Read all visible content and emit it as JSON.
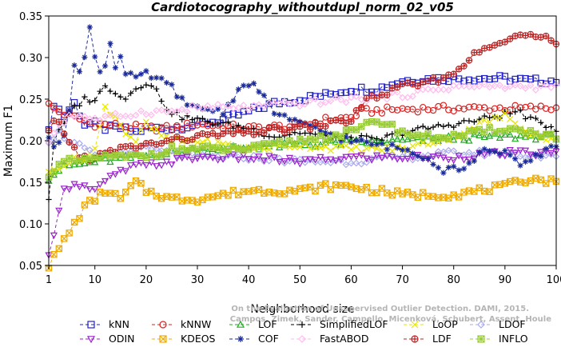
{
  "chart_data": {
    "type": "line",
    "title": "Cardiotocography_withoutdupl_norm_02_v05",
    "xlabel": "Neighborhood size",
    "ylabel": "Maximum F1",
    "xlim": [
      1,
      100
    ],
    "ylim": [
      0.05,
      0.35
    ],
    "xticks": [
      1,
      10,
      20,
      30,
      40,
      50,
      60,
      70,
      80,
      90,
      100
    ],
    "yticks": [
      0.05,
      0.1,
      0.15,
      0.2,
      0.25,
      0.3,
      0.35
    ],
    "legend_position": "bottom",
    "watermark": [
      "Campos, Zimek, Sander, Campello, Micenková, Schubert, Assent, Houle",
      "On the Evaluation of Unsupervised Outlier Detection. DAMI, 2015."
    ],
    "series": [
      {
        "name": "kNN",
        "color": "#2222cc",
        "marker": "square",
        "keypoints": [
          [
            1,
            0.21
          ],
          [
            2,
            0.245
          ],
          [
            4,
            0.23
          ],
          [
            6,
            0.245
          ],
          [
            8,
            0.22
          ],
          [
            10,
            0.22
          ],
          [
            12,
            0.215
          ],
          [
            15,
            0.215
          ],
          [
            18,
            0.21
          ],
          [
            20,
            0.215
          ],
          [
            25,
            0.215
          ],
          [
            30,
            0.22
          ],
          [
            35,
            0.225
          ],
          [
            40,
            0.235
          ],
          [
            45,
            0.245
          ],
          [
            50,
            0.25
          ],
          [
            55,
            0.255
          ],
          [
            60,
            0.262
          ],
          [
            65,
            0.262
          ],
          [
            68,
            0.268
          ],
          [
            70,
            0.272
          ],
          [
            75,
            0.274
          ],
          [
            80,
            0.275
          ],
          [
            90,
            0.275
          ],
          [
            95,
            0.272
          ],
          [
            100,
            0.272
          ]
        ]
      },
      {
        "name": "kNNW",
        "color": "#dd2222",
        "marker": "circle",
        "keypoints": [
          [
            1,
            0.243
          ],
          [
            3,
            0.235
          ],
          [
            6,
            0.228
          ],
          [
            10,
            0.22
          ],
          [
            15,
            0.218
          ],
          [
            20,
            0.215
          ],
          [
            25,
            0.215
          ],
          [
            30,
            0.22
          ],
          [
            40,
            0.215
          ],
          [
            50,
            0.218
          ],
          [
            55,
            0.225
          ],
          [
            60,
            0.228
          ],
          [
            62,
            0.235
          ],
          [
            65,
            0.236
          ],
          [
            70,
            0.238
          ],
          [
            80,
            0.239
          ],
          [
            90,
            0.239
          ],
          [
            100,
            0.239
          ]
        ]
      },
      {
        "name": "LOF",
        "color": "#22aa22",
        "marker": "triangle-up",
        "keypoints": [
          [
            1,
            0.155
          ],
          [
            3,
            0.165
          ],
          [
            5,
            0.17
          ],
          [
            8,
            0.172
          ],
          [
            10,
            0.175
          ],
          [
            15,
            0.178
          ],
          [
            20,
            0.182
          ],
          [
            25,
            0.185
          ],
          [
            30,
            0.19
          ],
          [
            40,
            0.192
          ],
          [
            50,
            0.195
          ],
          [
            60,
            0.198
          ],
          [
            70,
            0.2
          ],
          [
            80,
            0.203
          ],
          [
            90,
            0.205
          ],
          [
            100,
            0.205
          ]
        ]
      },
      {
        "name": "SimplifiedLOF",
        "color": "#000000",
        "marker": "plus",
        "keypoints": [
          [
            1,
            0.13
          ],
          [
            2,
            0.2
          ],
          [
            4,
            0.22
          ],
          [
            6,
            0.24
          ],
          [
            8,
            0.25
          ],
          [
            10,
            0.25
          ],
          [
            12,
            0.265
          ],
          [
            14,
            0.26
          ],
          [
            16,
            0.25
          ],
          [
            18,
            0.265
          ],
          [
            20,
            0.27
          ],
          [
            22,
            0.26
          ],
          [
            24,
            0.24
          ],
          [
            26,
            0.23
          ],
          [
            30,
            0.225
          ],
          [
            35,
            0.22
          ],
          [
            40,
            0.215
          ],
          [
            45,
            0.205
          ],
          [
            50,
            0.21
          ],
          [
            55,
            0.205
          ],
          [
            60,
            0.205
          ],
          [
            65,
            0.2
          ],
          [
            70,
            0.21
          ],
          [
            75,
            0.215
          ],
          [
            80,
            0.22
          ],
          [
            85,
            0.225
          ],
          [
            90,
            0.232
          ],
          [
            93,
            0.235
          ],
          [
            95,
            0.225
          ],
          [
            100,
            0.215
          ]
        ]
      },
      {
        "name": "LoOP",
        "color": "#e6e600",
        "marker": "x",
        "keypoints": [
          [
            1,
            0.16
          ],
          [
            3,
            0.17
          ],
          [
            5,
            0.175
          ],
          [
            8,
            0.18
          ],
          [
            10,
            0.19
          ],
          [
            12,
            0.24
          ],
          [
            14,
            0.23
          ],
          [
            16,
            0.21
          ],
          [
            18,
            0.2
          ],
          [
            20,
            0.22
          ],
          [
            22,
            0.21
          ],
          [
            25,
            0.2
          ],
          [
            30,
            0.2
          ],
          [
            40,
            0.19
          ],
          [
            50,
            0.195
          ],
          [
            60,
            0.19
          ],
          [
            70,
            0.19
          ],
          [
            80,
            0.205
          ],
          [
            85,
            0.22
          ],
          [
            90,
            0.23
          ],
          [
            95,
            0.21
          ],
          [
            100,
            0.2
          ]
        ]
      },
      {
        "name": "LDOF",
        "color": "#aaaaee",
        "marker": "diamond",
        "keypoints": [
          [
            1,
            0.2
          ],
          [
            3,
            0.21
          ],
          [
            5,
            0.2
          ],
          [
            8,
            0.19
          ],
          [
            10,
            0.18
          ],
          [
            15,
            0.185
          ],
          [
            20,
            0.19
          ],
          [
            25,
            0.185
          ],
          [
            30,
            0.18
          ],
          [
            40,
            0.18
          ],
          [
            50,
            0.175
          ],
          [
            60,
            0.175
          ],
          [
            70,
            0.18
          ],
          [
            80,
            0.185
          ],
          [
            90,
            0.185
          ],
          [
            100,
            0.18
          ]
        ]
      },
      {
        "name": "ODIN",
        "color": "#9922cc",
        "marker": "triangle-down",
        "keypoints": [
          [
            1,
            0.06
          ],
          [
            2,
            0.09
          ],
          [
            3,
            0.12
          ],
          [
            4,
            0.14
          ],
          [
            6,
            0.15
          ],
          [
            8,
            0.145
          ],
          [
            10,
            0.14
          ],
          [
            12,
            0.15
          ],
          [
            14,
            0.16
          ],
          [
            16,
            0.165
          ],
          [
            18,
            0.17
          ],
          [
            20,
            0.17
          ],
          [
            25,
            0.175
          ],
          [
            30,
            0.18
          ],
          [
            40,
            0.18
          ],
          [
            50,
            0.175
          ],
          [
            60,
            0.18
          ],
          [
            70,
            0.18
          ],
          [
            80,
            0.18
          ],
          [
            90,
            0.185
          ],
          [
            100,
            0.185
          ]
        ]
      },
      {
        "name": "KDEOS",
        "color": "#eeaa00",
        "marker": "square-x",
        "keypoints": [
          [
            1,
            0.05
          ],
          [
            2,
            0.06
          ],
          [
            4,
            0.08
          ],
          [
            6,
            0.1
          ],
          [
            8,
            0.12
          ],
          [
            10,
            0.13
          ],
          [
            12,
            0.14
          ],
          [
            15,
            0.13
          ],
          [
            18,
            0.15
          ],
          [
            20,
            0.14
          ],
          [
            25,
            0.13
          ],
          [
            30,
            0.13
          ],
          [
            35,
            0.135
          ],
          [
            40,
            0.14
          ],
          [
            45,
            0.14
          ],
          [
            50,
            0.14
          ],
          [
            55,
            0.145
          ],
          [
            60,
            0.145
          ],
          [
            65,
            0.14
          ],
          [
            70,
            0.135
          ],
          [
            75,
            0.135
          ],
          [
            80,
            0.135
          ],
          [
            85,
            0.14
          ],
          [
            90,
            0.145
          ],
          [
            95,
            0.155
          ],
          [
            100,
            0.15
          ]
        ]
      },
      {
        "name": "COF",
        "color": "#1a2a99",
        "marker": "star",
        "keypoints": [
          [
            1,
            0.2
          ],
          [
            2,
            0.195
          ],
          [
            3,
            0.2
          ],
          [
            4,
            0.21
          ],
          [
            5,
            0.24
          ],
          [
            6,
            0.29
          ],
          [
            7,
            0.28
          ],
          [
            8,
            0.3
          ],
          [
            9,
            0.34
          ],
          [
            10,
            0.3
          ],
          [
            11,
            0.285
          ],
          [
            12,
            0.29
          ],
          [
            13,
            0.32
          ],
          [
            14,
            0.29
          ],
          [
            15,
            0.3
          ],
          [
            16,
            0.28
          ],
          [
            18,
            0.275
          ],
          [
            20,
            0.28
          ],
          [
            22,
            0.275
          ],
          [
            25,
            0.265
          ],
          [
            28,
            0.24
          ],
          [
            30,
            0.24
          ],
          [
            35,
            0.235
          ],
          [
            38,
            0.26
          ],
          [
            40,
            0.27
          ],
          [
            42,
            0.26
          ],
          [
            45,
            0.235
          ],
          [
            50,
            0.22
          ],
          [
            55,
            0.21
          ],
          [
            60,
            0.2
          ],
          [
            65,
            0.195
          ],
          [
            70,
            0.19
          ],
          [
            75,
            0.18
          ],
          [
            78,
            0.165
          ],
          [
            80,
            0.17
          ],
          [
            82,
            0.165
          ],
          [
            85,
            0.185
          ],
          [
            88,
            0.19
          ],
          [
            90,
            0.185
          ],
          [
            93,
            0.17
          ],
          [
            96,
            0.18
          ],
          [
            98,
            0.19
          ],
          [
            100,
            0.195
          ]
        ]
      },
      {
        "name": "FastABOD",
        "color": "#ffbbee",
        "marker": "diamond",
        "keypoints": [
          [
            1,
            0.2
          ],
          [
            3,
            0.22
          ],
          [
            5,
            0.23
          ],
          [
            8,
            0.23
          ],
          [
            10,
            0.225
          ],
          [
            15,
            0.23
          ],
          [
            20,
            0.235
          ],
          [
            25,
            0.235
          ],
          [
            30,
            0.24
          ],
          [
            40,
            0.24
          ],
          [
            50,
            0.245
          ],
          [
            60,
            0.25
          ],
          [
            70,
            0.255
          ],
          [
            80,
            0.265
          ],
          [
            90,
            0.265
          ],
          [
            100,
            0.265
          ]
        ]
      },
      {
        "name": "LDF",
        "color": "#bb2222",
        "marker": "circle-plus",
        "keypoints": [
          [
            1,
            0.21
          ],
          [
            2,
            0.22
          ],
          [
            3,
            0.22
          ],
          [
            5,
            0.2
          ],
          [
            7,
            0.18
          ],
          [
            10,
            0.18
          ],
          [
            15,
            0.19
          ],
          [
            20,
            0.195
          ],
          [
            25,
            0.2
          ],
          [
            30,
            0.205
          ],
          [
            40,
            0.21
          ],
          [
            50,
            0.215
          ],
          [
            55,
            0.22
          ],
          [
            60,
            0.225
          ],
          [
            63,
            0.25
          ],
          [
            66,
            0.255
          ],
          [
            70,
            0.265
          ],
          [
            75,
            0.27
          ],
          [
            80,
            0.28
          ],
          [
            83,
            0.3
          ],
          [
            85,
            0.305
          ],
          [
            88,
            0.315
          ],
          [
            90,
            0.32
          ],
          [
            93,
            0.325
          ],
          [
            95,
            0.328
          ],
          [
            98,
            0.328
          ],
          [
            100,
            0.32
          ]
        ]
      },
      {
        "name": "INFLO",
        "color": "#99cc33",
        "marker": "square-star",
        "keypoints": [
          [
            1,
            0.16
          ],
          [
            3,
            0.17
          ],
          [
            5,
            0.175
          ],
          [
            8,
            0.175
          ],
          [
            10,
            0.18
          ],
          [
            15,
            0.18
          ],
          [
            20,
            0.182
          ],
          [
            25,
            0.19
          ],
          [
            30,
            0.19
          ],
          [
            40,
            0.19
          ],
          [
            50,
            0.2
          ],
          [
            55,
            0.205
          ],
          [
            60,
            0.21
          ],
          [
            62,
            0.215
          ],
          [
            65,
            0.225
          ],
          [
            67,
            0.22
          ],
          [
            70,
            0.21
          ],
          [
            75,
            0.205
          ],
          [
            80,
            0.205
          ],
          [
            85,
            0.21
          ],
          [
            90,
            0.215
          ],
          [
            95,
            0.21
          ],
          [
            100,
            0.205
          ]
        ]
      }
    ]
  }
}
